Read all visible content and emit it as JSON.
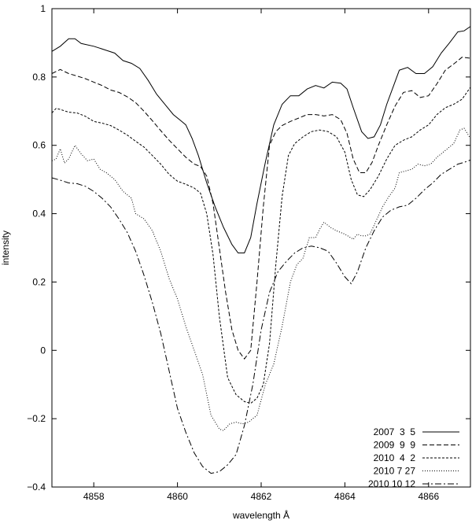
{
  "chart_data": {
    "type": "line",
    "title": "",
    "xlabel": "wavelength Å",
    "ylabel": "intensity",
    "xlim": [
      4857,
      4867
    ],
    "ylim": [
      -0.4,
      1
    ],
    "xticks": [
      4858,
      4860,
      4862,
      4864,
      4866
    ],
    "xtick_labels": [
      "4858",
      "4860",
      "4862",
      "4864",
      "4866"
    ],
    "yticks": [
      -0.4,
      -0.2,
      0,
      0.2,
      0.4,
      0.6,
      0.8,
      1
    ],
    "ytick_labels": [
      "−0.4",
      "−0.2",
      "0",
      "0.2",
      "0.4",
      "0.6",
      "0.8",
      "1"
    ],
    "grid": false,
    "legend_position": "bottom-right",
    "series": [
      {
        "name": "2007  3  5",
        "dash": "none",
        "points": [
          [
            4857.0,
            0.875
          ],
          [
            4857.2,
            0.89
          ],
          [
            4857.4,
            0.912
          ],
          [
            4857.55,
            0.912
          ],
          [
            4857.7,
            0.898
          ],
          [
            4858.0,
            0.89
          ],
          [
            4858.3,
            0.878
          ],
          [
            4858.5,
            0.87
          ],
          [
            4858.7,
            0.848
          ],
          [
            4858.9,
            0.84
          ],
          [
            4859.1,
            0.825
          ],
          [
            4859.3,
            0.79
          ],
          [
            4859.5,
            0.75
          ],
          [
            4859.7,
            0.72
          ],
          [
            4859.9,
            0.69
          ],
          [
            4860.1,
            0.67
          ],
          [
            4860.2,
            0.66
          ],
          [
            4860.35,
            0.62
          ],
          [
            4860.5,
            0.57
          ],
          [
            4860.7,
            0.49
          ],
          [
            4860.9,
            0.42
          ],
          [
            4861.1,
            0.36
          ],
          [
            4861.3,
            0.31
          ],
          [
            4861.45,
            0.285
          ],
          [
            4861.6,
            0.285
          ],
          [
            4861.75,
            0.33
          ],
          [
            4861.9,
            0.43
          ],
          [
            4862.1,
            0.55
          ],
          [
            4862.3,
            0.66
          ],
          [
            4862.5,
            0.72
          ],
          [
            4862.7,
            0.745
          ],
          [
            4862.9,
            0.745
          ],
          [
            4863.1,
            0.765
          ],
          [
            4863.3,
            0.775
          ],
          [
            4863.5,
            0.768
          ],
          [
            4863.7,
            0.785
          ],
          [
            4863.9,
            0.782
          ],
          [
            4864.05,
            0.765
          ],
          [
            4864.2,
            0.71
          ],
          [
            4864.4,
            0.64
          ],
          [
            4864.55,
            0.62
          ],
          [
            4864.7,
            0.625
          ],
          [
            4864.85,
            0.66
          ],
          [
            4865.0,
            0.72
          ],
          [
            4865.15,
            0.77
          ],
          [
            4865.3,
            0.82
          ],
          [
            4865.5,
            0.828
          ],
          [
            4865.7,
            0.81
          ],
          [
            4865.9,
            0.81
          ],
          [
            4866.1,
            0.83
          ],
          [
            4866.3,
            0.87
          ],
          [
            4866.5,
            0.9
          ],
          [
            4866.7,
            0.932
          ],
          [
            4866.85,
            0.935
          ],
          [
            4867.0,
            0.948
          ]
        ]
      },
      {
        "name": "2009  9  9",
        "dash": "6,3",
        "points": [
          [
            4857.0,
            0.81
          ],
          [
            4857.2,
            0.822
          ],
          [
            4857.4,
            0.81
          ],
          [
            4857.6,
            0.803
          ],
          [
            4857.8,
            0.795
          ],
          [
            4858.0,
            0.785
          ],
          [
            4858.2,
            0.775
          ],
          [
            4858.4,
            0.762
          ],
          [
            4858.6,
            0.755
          ],
          [
            4858.8,
            0.742
          ],
          [
            4859.0,
            0.725
          ],
          [
            4859.2,
            0.7
          ],
          [
            4859.4,
            0.672
          ],
          [
            4859.6,
            0.643
          ],
          [
            4859.8,
            0.615
          ],
          [
            4860.0,
            0.59
          ],
          [
            4860.2,
            0.565
          ],
          [
            4860.4,
            0.545
          ],
          [
            4860.55,
            0.538
          ],
          [
            4860.7,
            0.51
          ],
          [
            4860.85,
            0.43
          ],
          [
            4861.0,
            0.3
          ],
          [
            4861.15,
            0.17
          ],
          [
            4861.3,
            0.06
          ],
          [
            4861.45,
            0.0
          ],
          [
            4861.6,
            -0.025
          ],
          [
            4861.75,
            0.0
          ],
          [
            4861.9,
            0.2
          ],
          [
            4862.05,
            0.42
          ],
          [
            4862.2,
            0.6
          ],
          [
            4862.35,
            0.64
          ],
          [
            4862.5,
            0.658
          ],
          [
            4862.7,
            0.67
          ],
          [
            4862.9,
            0.68
          ],
          [
            4863.1,
            0.69
          ],
          [
            4863.3,
            0.69
          ],
          [
            4863.5,
            0.686
          ],
          [
            4863.7,
            0.69
          ],
          [
            4863.9,
            0.675
          ],
          [
            4864.05,
            0.635
          ],
          [
            4864.2,
            0.56
          ],
          [
            4864.35,
            0.52
          ],
          [
            4864.5,
            0.52
          ],
          [
            4864.65,
            0.55
          ],
          [
            4864.8,
            0.6
          ],
          [
            4865.0,
            0.66
          ],
          [
            4865.2,
            0.715
          ],
          [
            4865.4,
            0.755
          ],
          [
            4865.6,
            0.76
          ],
          [
            4865.8,
            0.74
          ],
          [
            4866.0,
            0.745
          ],
          [
            4866.2,
            0.78
          ],
          [
            4866.4,
            0.82
          ],
          [
            4866.6,
            0.838
          ],
          [
            4866.8,
            0.858
          ],
          [
            4867.0,
            0.855
          ]
        ]
      },
      {
        "name": "2010  4  2",
        "dash": "3,2",
        "points": [
          [
            4857.0,
            0.695
          ],
          [
            4857.1,
            0.708
          ],
          [
            4857.2,
            0.705
          ],
          [
            4857.4,
            0.697
          ],
          [
            4857.6,
            0.695
          ],
          [
            4857.8,
            0.685
          ],
          [
            4858.0,
            0.67
          ],
          [
            4858.2,
            0.665
          ],
          [
            4858.4,
            0.658
          ],
          [
            4858.6,
            0.645
          ],
          [
            4858.8,
            0.63
          ],
          [
            4859.0,
            0.612
          ],
          [
            4859.2,
            0.595
          ],
          [
            4859.4,
            0.57
          ],
          [
            4859.6,
            0.545
          ],
          [
            4859.8,
            0.515
          ],
          [
            4860.0,
            0.495
          ],
          [
            4860.2,
            0.486
          ],
          [
            4860.4,
            0.475
          ],
          [
            4860.55,
            0.46
          ],
          [
            4860.7,
            0.4
          ],
          [
            4860.85,
            0.28
          ],
          [
            4861.0,
            0.1
          ],
          [
            4861.2,
            -0.08
          ],
          [
            4861.4,
            -0.13
          ],
          [
            4861.6,
            -0.15
          ],
          [
            4861.75,
            -0.155
          ],
          [
            4861.9,
            -0.14
          ],
          [
            4862.05,
            -0.1
          ],
          [
            4862.2,
            0.02
          ],
          [
            4862.35,
            0.25
          ],
          [
            4862.5,
            0.45
          ],
          [
            4862.65,
            0.57
          ],
          [
            4862.8,
            0.605
          ],
          [
            4863.0,
            0.625
          ],
          [
            4863.2,
            0.64
          ],
          [
            4863.4,
            0.645
          ],
          [
            4863.6,
            0.64
          ],
          [
            4863.8,
            0.625
          ],
          [
            4864.0,
            0.58
          ],
          [
            4864.15,
            0.5
          ],
          [
            4864.3,
            0.455
          ],
          [
            4864.45,
            0.45
          ],
          [
            4864.6,
            0.47
          ],
          [
            4864.8,
            0.51
          ],
          [
            4865.0,
            0.56
          ],
          [
            4865.2,
            0.6
          ],
          [
            4865.4,
            0.615
          ],
          [
            4865.6,
            0.625
          ],
          [
            4865.8,
            0.645
          ],
          [
            4866.0,
            0.66
          ],
          [
            4866.2,
            0.69
          ],
          [
            4866.4,
            0.71
          ],
          [
            4866.6,
            0.72
          ],
          [
            4866.8,
            0.735
          ],
          [
            4867.0,
            0.77
          ]
        ]
      },
      {
        "name": "2010 7 27",
        "dash": "1,2",
        "points": [
          [
            4857.0,
            0.555
          ],
          [
            4857.1,
            0.56
          ],
          [
            4857.2,
            0.59
          ],
          [
            4857.3,
            0.548
          ],
          [
            4857.4,
            0.56
          ],
          [
            4857.55,
            0.6
          ],
          [
            4857.7,
            0.575
          ],
          [
            4857.85,
            0.555
          ],
          [
            4858.0,
            0.56
          ],
          [
            4858.15,
            0.53
          ],
          [
            4858.3,
            0.52
          ],
          [
            4858.5,
            0.5
          ],
          [
            4858.7,
            0.465
          ],
          [
            4858.9,
            0.445
          ],
          [
            4859.0,
            0.4
          ],
          [
            4859.2,
            0.385
          ],
          [
            4859.4,
            0.35
          ],
          [
            4859.6,
            0.29
          ],
          [
            4859.8,
            0.21
          ],
          [
            4860.0,
            0.15
          ],
          [
            4860.2,
            0.07
          ],
          [
            4860.4,
            0.0
          ],
          [
            4860.6,
            -0.07
          ],
          [
            4860.8,
            -0.19
          ],
          [
            4861.0,
            -0.23
          ],
          [
            4861.1,
            -0.235
          ],
          [
            4861.25,
            -0.215
          ],
          [
            4861.4,
            -0.21
          ],
          [
            4861.55,
            -0.215
          ],
          [
            4861.7,
            -0.21
          ],
          [
            4861.9,
            -0.19
          ],
          [
            4862.1,
            -0.1
          ],
          [
            4862.3,
            -0.04
          ],
          [
            4862.5,
            0.07
          ],
          [
            4862.7,
            0.2
          ],
          [
            4862.85,
            0.25
          ],
          [
            4863.0,
            0.27
          ],
          [
            4863.15,
            0.33
          ],
          [
            4863.3,
            0.33
          ],
          [
            4863.4,
            0.355
          ],
          [
            4863.5,
            0.375
          ],
          [
            4863.65,
            0.36
          ],
          [
            4863.8,
            0.35
          ],
          [
            4864.0,
            0.34
          ],
          [
            4864.2,
            0.325
          ],
          [
            4864.3,
            0.34
          ],
          [
            4864.4,
            0.335
          ],
          [
            4864.5,
            0.335
          ],
          [
            4864.6,
            0.34
          ],
          [
            4864.75,
            0.38
          ],
          [
            4864.9,
            0.42
          ],
          [
            4865.05,
            0.45
          ],
          [
            4865.2,
            0.475
          ],
          [
            4865.3,
            0.52
          ],
          [
            4865.45,
            0.525
          ],
          [
            4865.6,
            0.53
          ],
          [
            4865.75,
            0.545
          ],
          [
            4865.9,
            0.54
          ],
          [
            4866.05,
            0.545
          ],
          [
            4866.2,
            0.565
          ],
          [
            4866.4,
            0.585
          ],
          [
            4866.6,
            0.605
          ],
          [
            4866.75,
            0.645
          ],
          [
            4866.85,
            0.65
          ],
          [
            4867.0,
            0.62
          ]
        ]
      },
      {
        "name": "2010 10 12",
        "dash": "8,3,2,3",
        "points": [
          [
            4857.0,
            0.505
          ],
          [
            4857.2,
            0.498
          ],
          [
            4857.4,
            0.49
          ],
          [
            4857.6,
            0.488
          ],
          [
            4857.8,
            0.48
          ],
          [
            4858.0,
            0.465
          ],
          [
            4858.2,
            0.445
          ],
          [
            4858.4,
            0.42
          ],
          [
            4858.6,
            0.385
          ],
          [
            4858.8,
            0.345
          ],
          [
            4859.0,
            0.29
          ],
          [
            4859.2,
            0.22
          ],
          [
            4859.4,
            0.14
          ],
          [
            4859.6,
            0.05
          ],
          [
            4859.8,
            -0.06
          ],
          [
            4860.0,
            -0.17
          ],
          [
            4860.2,
            -0.24
          ],
          [
            4860.4,
            -0.3
          ],
          [
            4860.6,
            -0.34
          ],
          [
            4860.8,
            -0.36
          ],
          [
            4861.0,
            -0.355
          ],
          [
            4861.2,
            -0.335
          ],
          [
            4861.4,
            -0.305
          ],
          [
            4861.6,
            -0.22
          ],
          [
            4861.8,
            -0.1
          ],
          [
            4862.0,
            0.06
          ],
          [
            4862.2,
            0.17
          ],
          [
            4862.4,
            0.23
          ],
          [
            4862.6,
            0.26
          ],
          [
            4862.8,
            0.285
          ],
          [
            4863.0,
            0.3
          ],
          [
            4863.2,
            0.305
          ],
          [
            4863.4,
            0.3
          ],
          [
            4863.6,
            0.29
          ],
          [
            4863.8,
            0.255
          ],
          [
            4864.0,
            0.215
          ],
          [
            4864.15,
            0.195
          ],
          [
            4864.3,
            0.23
          ],
          [
            4864.5,
            0.3
          ],
          [
            4864.7,
            0.35
          ],
          [
            4864.9,
            0.39
          ],
          [
            4865.1,
            0.41
          ],
          [
            4865.3,
            0.42
          ],
          [
            4865.5,
            0.425
          ],
          [
            4865.7,
            0.445
          ],
          [
            4865.9,
            0.47
          ],
          [
            4866.1,
            0.49
          ],
          [
            4866.3,
            0.515
          ],
          [
            4866.5,
            0.53
          ],
          [
            4866.7,
            0.545
          ],
          [
            4866.85,
            0.55
          ],
          [
            4867.0,
            0.557
          ]
        ]
      }
    ]
  }
}
